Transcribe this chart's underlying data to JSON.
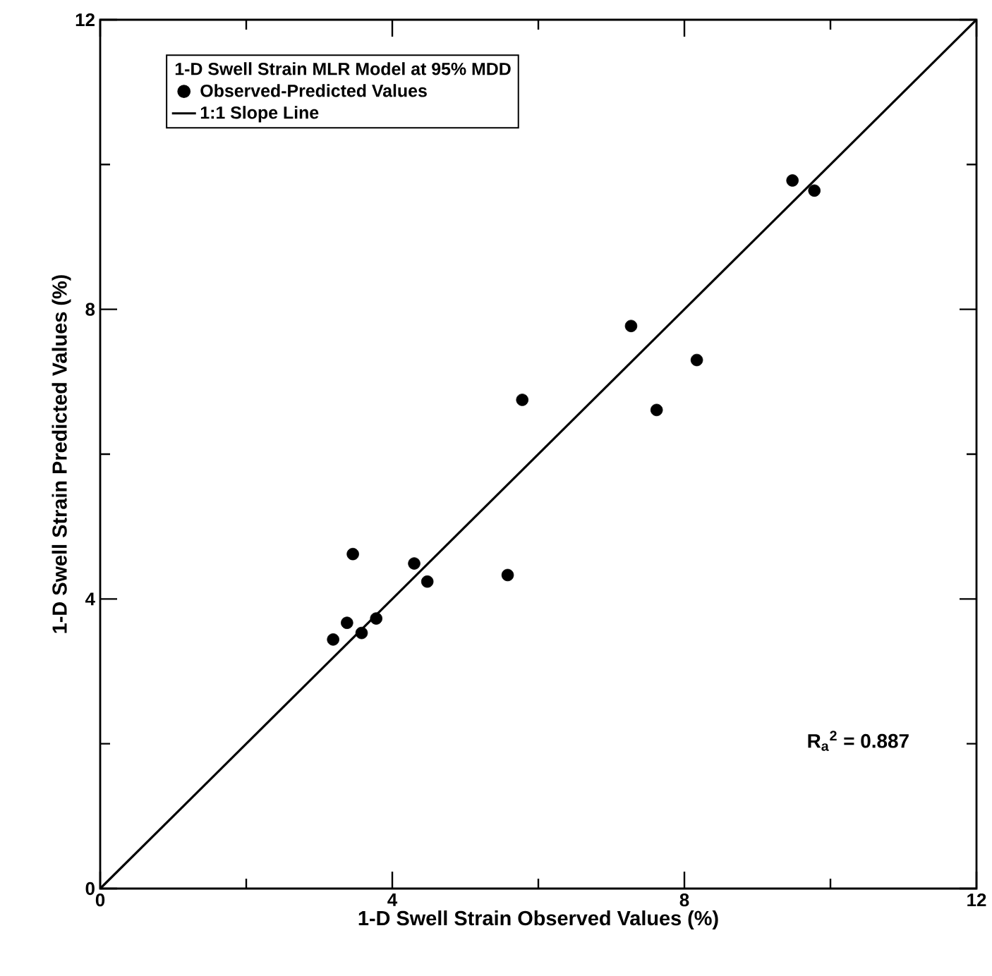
{
  "chart_data": {
    "type": "scatter",
    "xlabel": "1-D Swell Strain Observed Values (%)",
    "ylabel": "1-D Swell Strain Predicted Values (%)",
    "legend_title": "1-D Swell Strain MLR Model at 95% MDD",
    "xlim": [
      0,
      12
    ],
    "ylim": [
      0,
      12
    ],
    "xticks": [
      0,
      {
        "value": 2,
        "label": null
      },
      4,
      {
        "value": 6,
        "label": null
      },
      8,
      {
        "value": 10,
        "label": null
      },
      12
    ],
    "yticks": [
      0,
      {
        "value": 2,
        "label": null
      },
      4,
      {
        "value": 6,
        "label": null
      },
      8,
      {
        "value": 10,
        "label": null
      },
      12
    ],
    "legend": "top left",
    "marker": "circle",
    "series": [
      {
        "name": "Observed-Predicted Values",
        "color": "#000000",
        "x": [
          3.19,
          3.38,
          3.58,
          3.78,
          3.46,
          4.3,
          4.48,
          5.58,
          5.78,
          7.27,
          8.17,
          7.62,
          9.48,
          9.78
        ],
        "values": [
          3.44,
          3.67,
          3.53,
          3.73,
          4.62,
          4.49,
          4.24,
          4.33,
          6.75,
          7.77,
          7.3,
          6.61,
          9.78,
          9.64
        ]
      },
      {
        "name": "1:1 Slope Line",
        "type": "line",
        "color": "#000000",
        "line_style": "solid",
        "marker": "none",
        "x": [
          0,
          12
        ],
        "values": [
          0,
          12
        ]
      }
    ],
    "annotations": [
      "R$_{a}$$^{2}$ = 0.887"
    ]
  }
}
